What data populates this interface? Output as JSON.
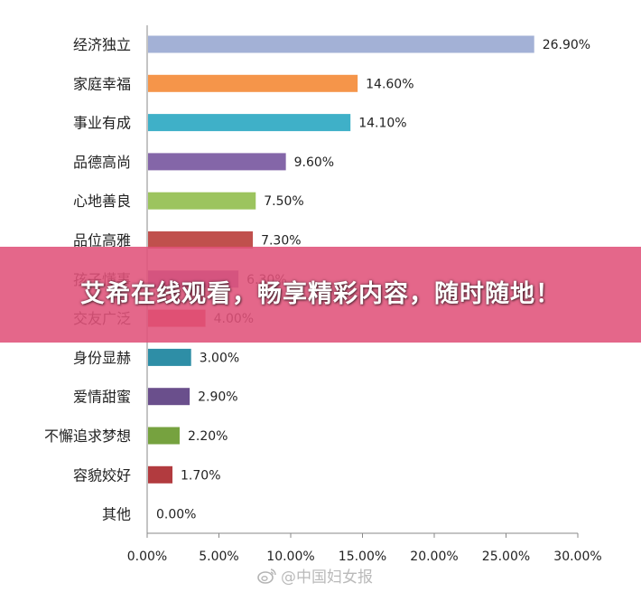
{
  "chart_data": {
    "type": "bar",
    "orientation": "horizontal",
    "categories": [
      "经济独立",
      "家庭幸福",
      "事业有成",
      "品德高尚",
      "心地善良",
      "品位高雅",
      "孩子懂事",
      "交友广泛",
      "身份显赫",
      "爱情甜蜜",
      "不懈追求梦想",
      "容貌姣好",
      "其他"
    ],
    "values": [
      26.9,
      14.6,
      14.1,
      9.6,
      7.5,
      7.3,
      6.3,
      4.0,
      3.0,
      2.9,
      2.2,
      1.7,
      0.0
    ],
    "value_labels": [
      "26.90%",
      "14.60%",
      "14.10%",
      "9.60%",
      "7.50%",
      "7.30%",
      "6.30%",
      "4.00%",
      "3.00%",
      "2.90%",
      "2.20%",
      "1.70%",
      "0.00%"
    ],
    "colors": [
      "#a3b1d6",
      "#f5954a",
      "#3fb0c8",
      "#8466a8",
      "#9cc45e",
      "#c0504d",
      "#8064a2",
      "#d9404a",
      "#2e8ea6",
      "#6a4f8c",
      "#76a23f",
      "#b23b3f",
      "#8c8c8c"
    ],
    "xlim": [
      0,
      30
    ],
    "x_ticks": [
      "0.00%",
      "5.00%",
      "10.00%",
      "15.00%",
      "20.00%",
      "25.00%",
      "30.00%"
    ],
    "title": "",
    "xlabel": "",
    "ylabel": "",
    "grid": false,
    "legend": "none"
  },
  "banner": {
    "text": "艾希在线观看，畅享精彩内容，随时随地！"
  },
  "watermark": {
    "icon": "weibo-icon",
    "text": "@中国妇女报"
  }
}
